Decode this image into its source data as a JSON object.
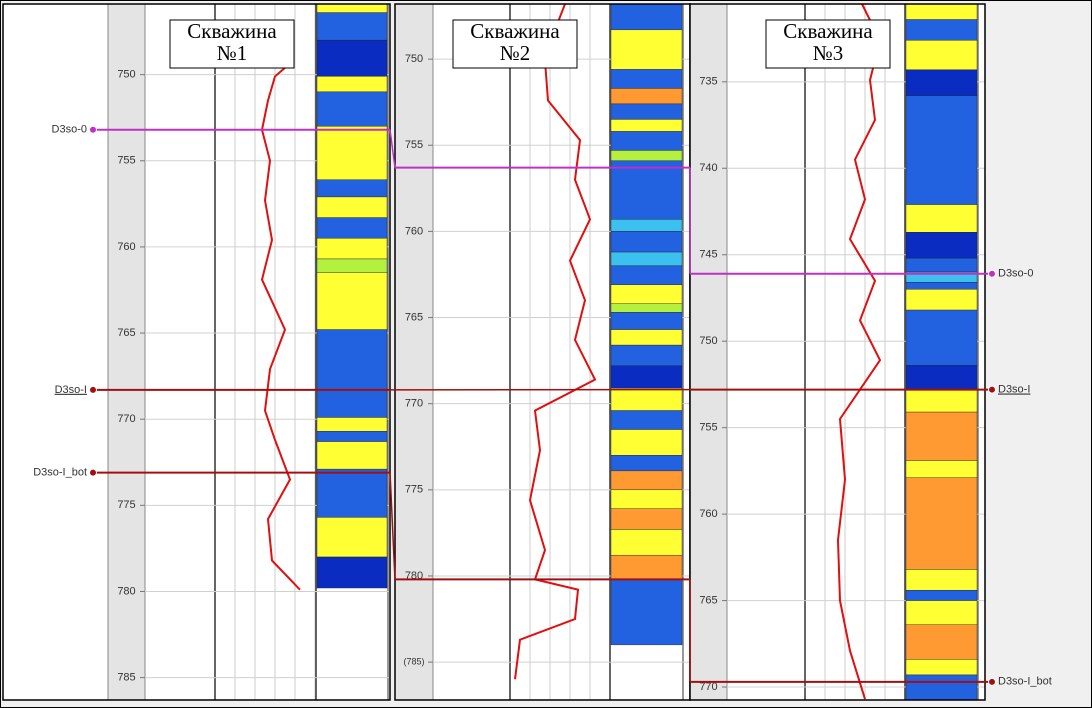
{
  "horizons": [
    {
      "name": "D3so-0",
      "color": "#c030c8"
    },
    {
      "name": "D3so-I",
      "color": "#a01010"
    },
    {
      "name": "D3so-I_bot",
      "color": "#a01010"
    }
  ],
  "chart_data": [
    {
      "type": "well-log",
      "title_lines": [
        "Скважина",
        "№1"
      ],
      "ylim": [
        745.9,
        786.3
      ],
      "yticks": [
        750,
        755,
        760,
        765,
        770,
        775,
        780,
        785
      ],
      "horizon_depths": [
        753.2,
        768.3,
        773.1
      ],
      "curve": {
        "color": "#e01010",
        "xlim": [
          0,
          100
        ],
        "depth": [
          749.2,
          750.1,
          751.5,
          753.2,
          755.0,
          757.3,
          759.6,
          761.9,
          764.8,
          767.1,
          769.5,
          771.2,
          773.5,
          775.8,
          778.2,
          779.9
        ],
        "values": [
          78,
          60,
          53,
          47,
          55,
          50,
          57,
          47,
          70,
          55,
          50,
          60,
          75,
          53,
          57,
          85
        ]
      },
      "layers": [
        {
          "from": 745.9,
          "to": 746.4,
          "color": "#ffff33"
        },
        {
          "from": 746.4,
          "to": 748.0,
          "color": "#2262e0"
        },
        {
          "from": 748.0,
          "to": 750.1,
          "color": "#0a2cc0"
        },
        {
          "from": 750.1,
          "to": 751.0,
          "color": "#ffff33"
        },
        {
          "from": 751.0,
          "to": 753.0,
          "color": "#2262e0"
        },
        {
          "from": 753.0,
          "to": 756.1,
          "color": "#ffff33"
        },
        {
          "from": 756.1,
          "to": 757.1,
          "color": "#2262e0"
        },
        {
          "from": 757.1,
          "to": 758.3,
          "color": "#ffff33"
        },
        {
          "from": 758.3,
          "to": 759.5,
          "color": "#2262e0"
        },
        {
          "from": 759.5,
          "to": 760.7,
          "color": "#ffff33"
        },
        {
          "from": 760.7,
          "to": 761.5,
          "color": "#b4f040"
        },
        {
          "from": 761.5,
          "to": 764.8,
          "color": "#ffff33"
        },
        {
          "from": 764.8,
          "to": 769.9,
          "color": "#2262e0"
        },
        {
          "from": 769.9,
          "to": 770.7,
          "color": "#ffff33"
        },
        {
          "from": 770.7,
          "to": 771.3,
          "color": "#2262e0"
        },
        {
          "from": 771.3,
          "to": 772.9,
          "color": "#ffff33"
        },
        {
          "from": 772.9,
          "to": 775.7,
          "color": "#2262e0"
        },
        {
          "from": 775.7,
          "to": 778.0,
          "color": "#ffff33"
        },
        {
          "from": 778.0,
          "to": 779.8,
          "color": "#0a2cc0"
        }
      ]
    },
    {
      "type": "well-log",
      "title_lines": [
        "Скважина",
        "№2"
      ],
      "ylim": [
        746.8,
        787.2
      ],
      "yticks": [
        750,
        755,
        760,
        765,
        770,
        775,
        780,
        {
          "value": 785,
          "label": "(785)"
        }
      ],
      "horizon_depths": [
        756.3,
        null,
        780.2
      ],
      "curve": {
        "color": "#e01010",
        "xlim": [
          0,
          100
        ],
        "depth": [
          746.8,
          748.3,
          750.1,
          752.4,
          754.7,
          757.0,
          759.3,
          761.7,
          764.0,
          766.3,
          768.6,
          770.4,
          772.7,
          775.6,
          778.5,
          780.2,
          780.8,
          782.5,
          783.7,
          786.0
        ],
        "values": [
          55,
          45,
          35,
          38,
          70,
          65,
          80,
          60,
          75,
          65,
          85,
          25,
          30,
          20,
          35,
          25,
          68,
          65,
          10,
          5
        ]
      },
      "layers": [
        {
          "from": 746.8,
          "to": 748.3,
          "color": "#2262e0"
        },
        {
          "from": 748.3,
          "to": 750.6,
          "color": "#ffff33"
        },
        {
          "from": 750.6,
          "to": 751.7,
          "color": "#2262e0"
        },
        {
          "from": 751.7,
          "to": 752.6,
          "color": "#ff9a33"
        },
        {
          "from": 752.6,
          "to": 753.5,
          "color": "#2262e0"
        },
        {
          "from": 753.5,
          "to": 754.2,
          "color": "#ffff33"
        },
        {
          "from": 754.2,
          "to": 755.3,
          "color": "#2262e0"
        },
        {
          "from": 755.3,
          "to": 755.9,
          "color": "#b4f040"
        },
        {
          "from": 755.9,
          "to": 759.3,
          "color": "#2262e0"
        },
        {
          "from": 759.3,
          "to": 760.0,
          "color": "#3cc0f0"
        },
        {
          "from": 760.0,
          "to": 761.2,
          "color": "#2262e0"
        },
        {
          "from": 761.2,
          "to": 762.0,
          "color": "#3cc0f0"
        },
        {
          "from": 762.0,
          "to": 763.1,
          "color": "#2262e0"
        },
        {
          "from": 763.1,
          "to": 764.2,
          "color": "#ffff33"
        },
        {
          "from": 764.2,
          "to": 764.7,
          "color": "#b4f040"
        },
        {
          "from": 764.7,
          "to": 765.7,
          "color": "#2262e0"
        },
        {
          "from": 765.7,
          "to": 766.6,
          "color": "#ffff33"
        },
        {
          "from": 766.6,
          "to": 767.8,
          "color": "#2262e0"
        },
        {
          "from": 767.8,
          "to": 769.1,
          "color": "#0a2cc0"
        },
        {
          "from": 769.1,
          "to": 770.4,
          "color": "#ffff33"
        },
        {
          "from": 770.4,
          "to": 771.5,
          "color": "#2262e0"
        },
        {
          "from": 771.5,
          "to": 773.0,
          "color": "#ffff33"
        },
        {
          "from": 773.0,
          "to": 773.9,
          "color": "#2262e0"
        },
        {
          "from": 773.9,
          "to": 775.0,
          "color": "#ff9a33"
        },
        {
          "from": 775.0,
          "to": 776.1,
          "color": "#ffff33"
        },
        {
          "from": 776.1,
          "to": 777.3,
          "color": "#ff9a33"
        },
        {
          "from": 777.3,
          "to": 778.8,
          "color": "#ffff33"
        },
        {
          "from": 778.8,
          "to": 780.2,
          "color": "#ff9a33"
        },
        {
          "from": 780.2,
          "to": 784.0,
          "color": "#2262e0"
        }
      ]
    },
    {
      "type": "well-log",
      "title_lines": [
        "Скважина",
        "№3"
      ],
      "ylim": [
        730.5,
        770.75
      ],
      "yticks": [
        735,
        740,
        745,
        750,
        755,
        760,
        765,
        770
      ],
      "horizon_depths": [
        746.1,
        752.8,
        769.7
      ],
      "curve": {
        "color": "#e01010",
        "xlim": [
          0,
          100
        ],
        "depth": [
          730.5,
          732.6,
          734.9,
          737.2,
          739.5,
          741.8,
          744.1,
          746.5,
          748.8,
          751.1,
          752.8,
          754.5,
          758.0,
          761.5,
          765.0,
          767.9,
          770.7
        ],
        "values": [
          57,
          75,
          65,
          70,
          50,
          60,
          45,
          70,
          55,
          75,
          55,
          35,
          40,
          33,
          35,
          45,
          60
        ]
      },
      "layers": [
        {
          "from": 730.5,
          "to": 731.4,
          "color": "#ffff33"
        },
        {
          "from": 731.4,
          "to": 732.6,
          "color": "#2262e0"
        },
        {
          "from": 732.6,
          "to": 734.3,
          "color": "#ffff33"
        },
        {
          "from": 734.3,
          "to": 735.8,
          "color": "#0a2cc0"
        },
        {
          "from": 735.8,
          "to": 742.1,
          "color": "#2262e0"
        },
        {
          "from": 742.1,
          "to": 743.7,
          "color": "#ffff33"
        },
        {
          "from": 743.7,
          "to": 745.2,
          "color": "#0a2cc0"
        },
        {
          "from": 745.2,
          "to": 746.0,
          "color": "#2262e0"
        },
        {
          "from": 746.0,
          "to": 746.6,
          "color": "#3cc0f0"
        },
        {
          "from": 746.6,
          "to": 747.0,
          "color": "#2262e0"
        },
        {
          "from": 747.0,
          "to": 748.2,
          "color": "#ffff33"
        },
        {
          "from": 748.2,
          "to": 751.4,
          "color": "#2262e0"
        },
        {
          "from": 751.4,
          "to": 752.8,
          "color": "#0a2cc0"
        },
        {
          "from": 752.8,
          "to": 754.1,
          "color": "#ffff33"
        },
        {
          "from": 754.1,
          "to": 756.9,
          "color": "#ff9a33"
        },
        {
          "from": 756.9,
          "to": 757.9,
          "color": "#ffff33"
        },
        {
          "from": 757.9,
          "to": 763.2,
          "color": "#ff9a33"
        },
        {
          "from": 763.2,
          "to": 764.4,
          "color": "#ffff33"
        },
        {
          "from": 764.4,
          "to": 765.0,
          "color": "#2262e0"
        },
        {
          "from": 765.0,
          "to": 766.4,
          "color": "#ffff33"
        },
        {
          "from": 766.4,
          "to": 768.4,
          "color": "#ff9a33"
        },
        {
          "from": 768.4,
          "to": 769.3,
          "color": "#ffff33"
        },
        {
          "from": 769.3,
          "to": 770.75,
          "color": "#2262e0"
        }
      ]
    }
  ]
}
